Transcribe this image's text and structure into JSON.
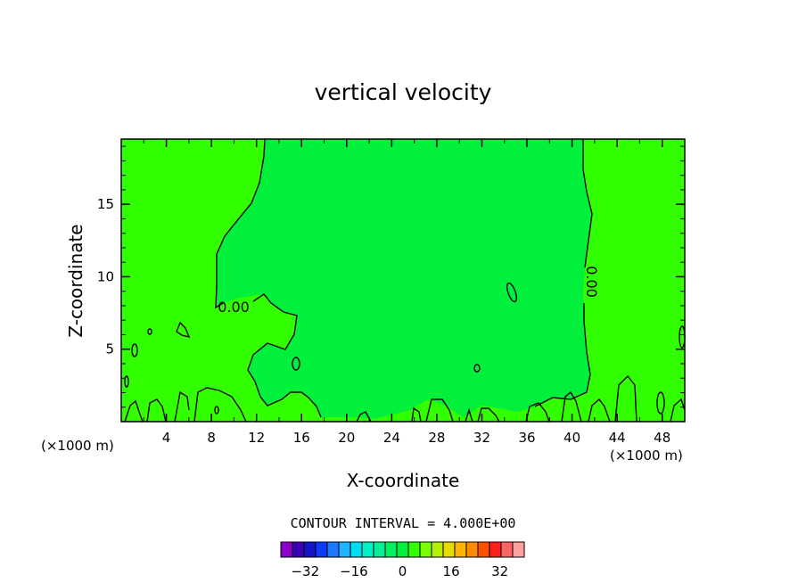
{
  "chart_data": {
    "type": "contour",
    "title": "vertical velocity",
    "xlabel": "X-coordinate",
    "ylabel": "Z-coordinate",
    "x_unit": "(×1000 m)",
    "xlim": [
      0,
      50
    ],
    "ylim": [
      0,
      19.5
    ],
    "x_ticks": [
      4,
      8,
      12,
      16,
      20,
      24,
      28,
      32,
      36,
      40,
      44,
      48
    ],
    "y_ticks": [
      5,
      10,
      15
    ],
    "contour_interval_text": "CONTOUR INTERVAL = 4.000E+00",
    "contour_labels": [
      "0.00",
      "0.00"
    ],
    "colorbar": {
      "tick_labels": [
        "−32",
        "−16",
        "0",
        "16",
        "32"
      ],
      "tick_values": [
        -32,
        -16,
        0,
        16,
        32
      ],
      "range": [
        -40,
        40
      ],
      "colors": [
        "#8a00c8",
        "#3c00b4",
        "#1414c8",
        "#0a3cff",
        "#1e78ff",
        "#1eb4ff",
        "#00dcf0",
        "#00f0c8",
        "#00f096",
        "#00f064",
        "#00f03c",
        "#32ff00",
        "#78ff00",
        "#b4f000",
        "#e6dc00",
        "#ffb400",
        "#ff8c00",
        "#ff5000",
        "#ff1e1e",
        "#ff6464",
        "#ffa0a0"
      ]
    },
    "field_colors": {
      "positive_region": "#32ff00",
      "negative_region": "#00f03c"
    }
  }
}
